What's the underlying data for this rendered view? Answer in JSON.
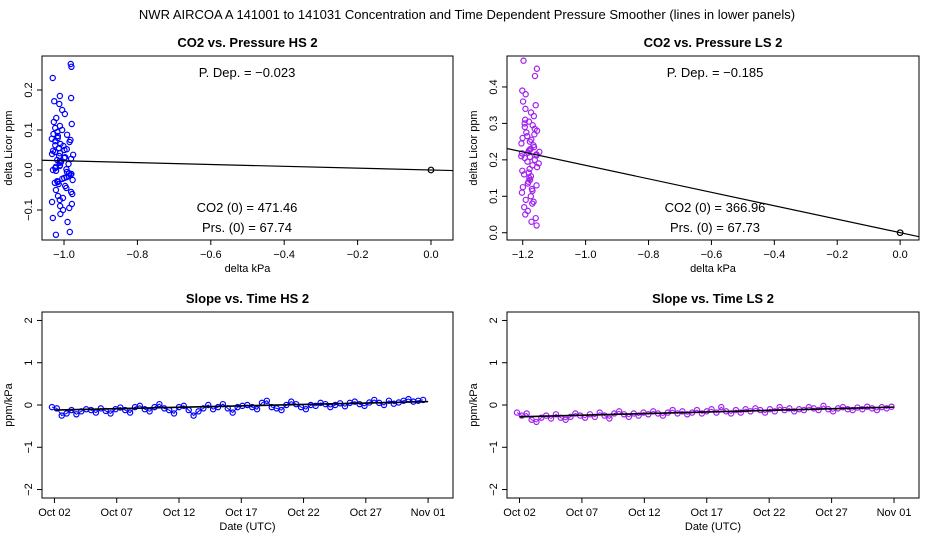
{
  "page_title": "NWR   AIRCOA A   141001 to 141031   Concentration and Time Dependent Pressure Smoother (lines in lower panels)",
  "colors": {
    "hs": "#0000ff",
    "ls": "#a020f0",
    "axis": "#000000",
    "line": "#000000"
  },
  "chart_data": [
    {
      "id": "hs-pressure",
      "type": "scatter",
      "title": "CO2 vs. Pressure HS 2",
      "xlabel": "delta kPa",
      "ylabel": "delta Licor ppm",
      "xlim": [
        -1.06,
        0.06
      ],
      "ylim": [
        -0.175,
        0.285
      ],
      "xticks": [
        -1.0,
        -0.8,
        -0.6,
        -0.4,
        -0.2,
        0.0
      ],
      "xtick_labels": [
        "−1.0",
        "−0.8",
        "−0.6",
        "−0.4",
        "−0.2",
        "0.0"
      ],
      "yticks": [
        -0.1,
        0.0,
        0.1,
        0.2
      ],
      "ytick_labels": [
        "−0.1",
        "0.0",
        "0.1",
        "0.2"
      ],
      "annotations": {
        "p_dep": "P. Dep. =  −0.023",
        "co2_0": "CO2 (0) =  471.46",
        "prs_0": "Prs. (0) =  67.74"
      },
      "fit_line": [
        [
          -1.06,
          0.0244
        ],
        [
          0.06,
          -0.0014
        ]
      ],
      "zero_point": [
        0.0,
        0.0
      ],
      "cluster": {
        "x_center": -1.005,
        "x_spread": 0.03,
        "y_values": [
          0.265,
          0.258,
          0.23,
          0.185,
          0.18,
          0.172,
          0.165,
          0.15,
          0.14,
          0.13,
          0.12,
          0.115,
          0.11,
          0.105,
          0.1,
          0.095,
          0.09,
          0.088,
          0.085,
          0.08,
          0.078,
          0.075,
          0.072,
          0.07,
          0.065,
          0.062,
          0.06,
          0.055,
          0.052,
          0.05,
          0.048,
          0.045,
          0.042,
          0.04,
          0.038,
          0.035,
          0.032,
          0.03,
          0.028,
          0.025,
          0.022,
          0.02,
          0.018,
          0.015,
          0.012,
          0.01,
          0.008,
          0.005,
          0.002,
          0.0,
          -0.002,
          -0.005,
          -0.008,
          -0.01,
          -0.012,
          -0.015,
          -0.018,
          -0.02,
          -0.022,
          -0.025,
          -0.028,
          -0.03,
          -0.032,
          -0.035,
          -0.04,
          -0.045,
          -0.05,
          -0.055,
          -0.06,
          -0.065,
          -0.07,
          -0.075,
          -0.08,
          -0.085,
          -0.09,
          -0.095,
          -0.1,
          -0.11,
          -0.12,
          -0.13,
          -0.155,
          -0.162
        ]
      }
    },
    {
      "id": "ls-pressure",
      "type": "scatter",
      "title": "CO2 vs. Pressure LS 2",
      "xlabel": "delta kPa",
      "ylabel": "delta Licor ppm",
      "xlim": [
        -1.25,
        0.06
      ],
      "ylim": [
        -0.02,
        0.485
      ],
      "xticks": [
        -1.2,
        -1.0,
        -0.8,
        -0.6,
        -0.4,
        -0.2,
        0.0
      ],
      "xtick_labels": [
        "−1.2",
        "−1.0",
        "−0.8",
        "−0.6",
        "−0.4",
        "−0.2",
        "0.0"
      ],
      "yticks": [
        0.0,
        0.1,
        0.2,
        0.3,
        0.4
      ],
      "ytick_labels": [
        "0.0",
        "0.1",
        "0.2",
        "0.3",
        "0.4"
      ],
      "annotations": {
        "p_dep": "P. Dep. =  −0.185",
        "co2_0": "CO2 (0) =  366.96",
        "prs_0": "Prs. (0) =  67.73"
      },
      "fit_line": [
        [
          -1.25,
          0.231
        ],
        [
          0.06,
          -0.011
        ]
      ],
      "zero_point": [
        0.0,
        0.0
      ],
      "cluster": {
        "x_center": -1.175,
        "x_spread": 0.03,
        "y_values": [
          0.472,
          0.45,
          0.43,
          0.39,
          0.38,
          0.36,
          0.35,
          0.34,
          0.33,
          0.32,
          0.31,
          0.305,
          0.3,
          0.295,
          0.29,
          0.285,
          0.28,
          0.275,
          0.27,
          0.265,
          0.26,
          0.255,
          0.25,
          0.245,
          0.24,
          0.235,
          0.23,
          0.228,
          0.225,
          0.222,
          0.22,
          0.218,
          0.215,
          0.212,
          0.21,
          0.208,
          0.205,
          0.2,
          0.195,
          0.19,
          0.185,
          0.18,
          0.175,
          0.17,
          0.165,
          0.16,
          0.155,
          0.15,
          0.145,
          0.14,
          0.135,
          0.13,
          0.125,
          0.12,
          0.115,
          0.11,
          0.1,
          0.09,
          0.085,
          0.08,
          0.07,
          0.06,
          0.05,
          0.04,
          0.03,
          0.02
        ]
      }
    },
    {
      "id": "hs-time",
      "type": "line",
      "title": "Slope vs. Time HS 2",
      "xlabel": "Date (UTC)",
      "ylabel": "ppm/kPa",
      "xlim": [
        0,
        33
      ],
      "ylim": [
        -2.2,
        2.2
      ],
      "xticks": [
        1,
        6,
        11,
        16,
        21,
        26,
        31
      ],
      "xtick_labels": [
        "Oct 02",
        "Oct 07",
        "Oct 12",
        "Oct 17",
        "Oct 22",
        "Oct 27",
        "Nov 01"
      ],
      "yticks": [
        -2,
        -1,
        0,
        1,
        2
      ],
      "ytick_labels": [
        "−2",
        "−1",
        "0",
        "1",
        "2"
      ],
      "fit_line": [
        [
          1,
          -0.12
        ],
        [
          31,
          0.08
        ]
      ],
      "series": {
        "x_start": 0.8,
        "x_end": 30.6,
        "values": [
          -0.05,
          -0.08,
          -0.25,
          -0.2,
          -0.12,
          -0.22,
          -0.15,
          -0.1,
          -0.12,
          -0.18,
          -0.08,
          -0.14,
          -0.2,
          -0.1,
          -0.06,
          -0.12,
          -0.18,
          -0.05,
          -0.02,
          -0.1,
          -0.15,
          -0.05,
          0.02,
          -0.08,
          -0.12,
          -0.2,
          -0.05,
          -0.02,
          -0.12,
          -0.25,
          -0.15,
          -0.08,
          0.0,
          -0.1,
          -0.05,
          0.02,
          -0.08,
          -0.18,
          -0.05,
          -0.02,
          0.0,
          -0.05,
          -0.1,
          0.05,
          0.1,
          -0.05,
          -0.08,
          -0.12,
          0.0,
          0.08,
          0.02,
          -0.05,
          -0.1,
          0.0,
          -0.02,
          0.05,
          0.02,
          -0.05,
          0.0,
          0.04,
          -0.03,
          0.05,
          0.08,
          0.02,
          -0.02,
          0.06,
          0.12,
          0.05,
          0.0,
          0.1,
          0.03,
          0.06,
          0.1,
          0.14,
          0.08,
          0.1,
          0.12
        ]
      }
    },
    {
      "id": "ls-time",
      "type": "line",
      "title": "Slope vs. Time LS 2",
      "xlabel": "Date (UTC)",
      "ylabel": "ppm/kPa",
      "xlim": [
        0,
        33
      ],
      "ylim": [
        -2.2,
        2.2
      ],
      "xticks": [
        1,
        6,
        11,
        16,
        21,
        26,
        31
      ],
      "xtick_labels": [
        "Oct 02",
        "Oct 07",
        "Oct 12",
        "Oct 17",
        "Oct 22",
        "Oct 27",
        "Nov 01"
      ],
      "yticks": [
        -2,
        -1,
        0,
        1,
        2
      ],
      "ytick_labels": [
        "−2",
        "−1",
        "0",
        "1",
        "2"
      ],
      "fit_line": [
        [
          1,
          -0.28
        ],
        [
          31,
          -0.05
        ]
      ],
      "series": {
        "x_start": 0.8,
        "x_end": 30.8,
        "values": [
          -0.18,
          -0.25,
          -0.2,
          -0.35,
          -0.4,
          -0.3,
          -0.25,
          -0.32,
          -0.22,
          -0.3,
          -0.35,
          -0.28,
          -0.2,
          -0.25,
          -0.3,
          -0.22,
          -0.28,
          -0.18,
          -0.25,
          -0.32,
          -0.2,
          -0.15,
          -0.22,
          -0.28,
          -0.2,
          -0.25,
          -0.18,
          -0.22,
          -0.15,
          -0.2,
          -0.25,
          -0.18,
          -0.12,
          -0.2,
          -0.15,
          -0.22,
          -0.18,
          -0.12,
          -0.2,
          -0.15,
          -0.1,
          -0.18,
          -0.05,
          -0.15,
          -0.2,
          -0.12,
          -0.18,
          -0.1,
          -0.15,
          -0.08,
          -0.12,
          -0.18,
          -0.1,
          -0.15,
          -0.05,
          -0.12,
          -0.08,
          -0.15,
          -0.1,
          -0.12,
          -0.05,
          -0.08,
          -0.12,
          -0.02,
          -0.1,
          -0.15,
          -0.08,
          -0.05,
          -0.1,
          -0.12,
          -0.06,
          -0.1,
          -0.04,
          -0.08,
          -0.12,
          -0.05,
          -0.08,
          -0.04
        ]
      }
    }
  ]
}
